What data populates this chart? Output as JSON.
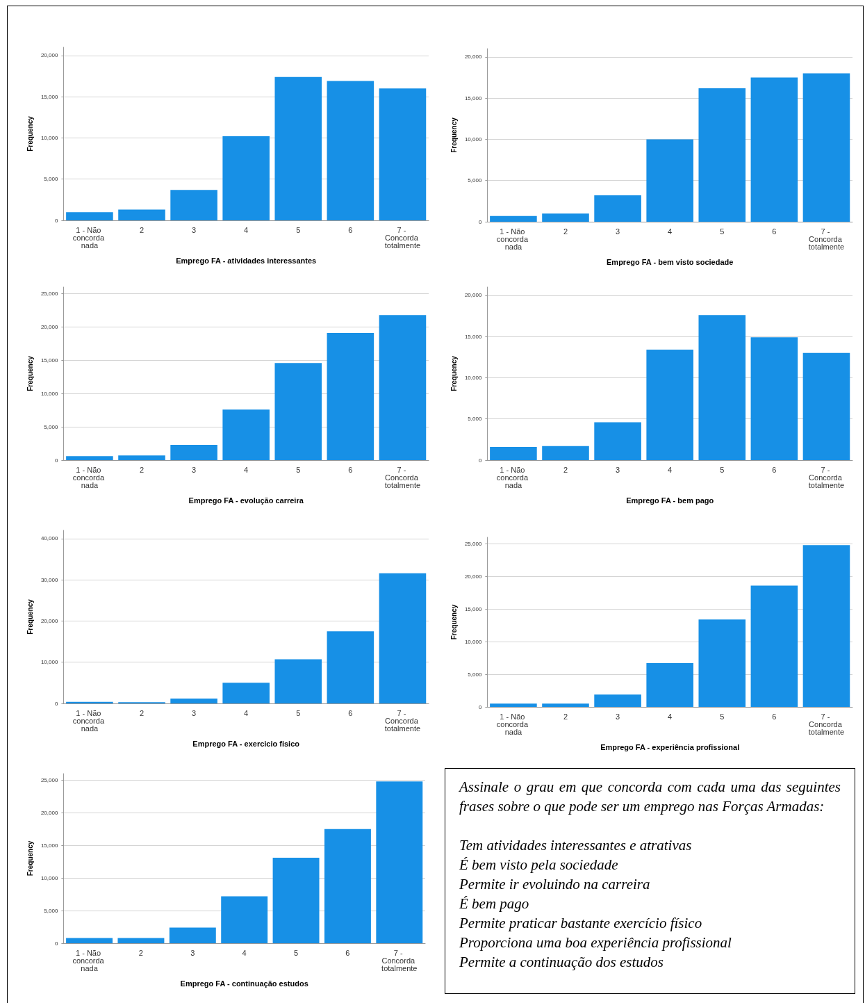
{
  "chart_data": [
    {
      "type": "bar",
      "xlabel": "Emprego FA - atividades interessantes",
      "ylabel": "Frequency",
      "categories": [
        "1 - Não concorda nada",
        "2",
        "3",
        "4",
        "5",
        "6",
        "7 - Concorda totalmente"
      ],
      "color": "#1790e6",
      "values": [
        1000,
        1300,
        3700,
        10200,
        17400,
        16900,
        16000
      ],
      "ylim": [
        0,
        21000
      ],
      "yticks": [
        {
          "value": 0,
          "label": "0"
        },
        {
          "value": 5000,
          "label": "5,000"
        },
        {
          "value": 10000,
          "label": "10,000"
        },
        {
          "value": 15000,
          "label": "15,000"
        },
        {
          "value": 20000,
          "label": "20,000"
        }
      ],
      "grid": "y"
    },
    {
      "type": "bar",
      "xlabel": "Emprego FA - bem visto sociedade",
      "ylabel": "Frequency",
      "categories": [
        "1 - Não concorda nada",
        "2",
        "3",
        "4",
        "5",
        "6",
        "7 - Concorda totalmente"
      ],
      "color": "#1790e6",
      "values": [
        700,
        1000,
        3200,
        10000,
        16200,
        17500,
        18000
      ],
      "ylim": [
        0,
        21000
      ],
      "yticks": [
        {
          "value": 0,
          "label": "0"
        },
        {
          "value": 5000,
          "label": "5,000"
        },
        {
          "value": 10000,
          "label": "10,000"
        },
        {
          "value": 15000,
          "label": "15,000"
        },
        {
          "value": 20000,
          "label": "20,000"
        }
      ],
      "grid": "y"
    },
    {
      "type": "bar",
      "xlabel": "Emprego FA - evolução carreira",
      "ylabel": "Frequency",
      "categories": [
        "1 - Não concorda nada",
        "2",
        "3",
        "4",
        "5",
        "6",
        "7 - Concorda totalmente"
      ],
      "color": "#1790e6",
      "values": [
        600,
        700,
        2300,
        7600,
        14600,
        19100,
        21800
      ],
      "ylim": [
        0,
        26000
      ],
      "yticks": [
        {
          "value": 0,
          "label": "0"
        },
        {
          "value": 5000,
          "label": "5,000"
        },
        {
          "value": 10000,
          "label": "10,000"
        },
        {
          "value": 15000,
          "label": "15,000"
        },
        {
          "value": 20000,
          "label": "20,000"
        },
        {
          "value": 25000,
          "label": "25,000"
        }
      ],
      "grid": "y"
    },
    {
      "type": "bar",
      "xlabel": "Emprego FA - bem pago",
      "ylabel": "Frequency",
      "categories": [
        "1 - Não concorda nada",
        "2",
        "3",
        "4",
        "5",
        "6",
        "7 - Concorda totalmente"
      ],
      "color": "#1790e6",
      "values": [
        1600,
        1700,
        4600,
        13400,
        17600,
        14900,
        13000
      ],
      "ylim": [
        0,
        21000
      ],
      "yticks": [
        {
          "value": 0,
          "label": "0"
        },
        {
          "value": 5000,
          "label": "5,000"
        },
        {
          "value": 10000,
          "label": "10,000"
        },
        {
          "value": 15000,
          "label": "15,000"
        },
        {
          "value": 20000,
          "label": "20,000"
        }
      ],
      "grid": "y"
    },
    {
      "type": "bar",
      "xlabel": "Emprego FA - exercicio fisico",
      "ylabel": "Frequency",
      "categories": [
        "1 - Não concorda nada",
        "2",
        "3",
        "4",
        "5",
        "6",
        "7 - Concorda totalmente"
      ],
      "color": "#1790e6",
      "values": [
        400,
        300,
        1200,
        5000,
        10700,
        17500,
        31600
      ],
      "ylim": [
        0,
        42000
      ],
      "yticks": [
        {
          "value": 0,
          "label": "0"
        },
        {
          "value": 10000,
          "label": "10,000"
        },
        {
          "value": 20000,
          "label": "20,000"
        },
        {
          "value": 30000,
          "label": "30,000"
        },
        {
          "value": 40000,
          "label": "40,000"
        }
      ],
      "grid": "y"
    },
    {
      "type": "bar",
      "xlabel": "Emprego FA - experiência profissional",
      "ylabel": "Frequency",
      "categories": [
        "1 - Não concorda nada",
        "2",
        "3",
        "4",
        "5",
        "6",
        "7 - Concorda totalmente"
      ],
      "color": "#1790e6",
      "values": [
        500,
        500,
        1900,
        6700,
        13400,
        18600,
        24800
      ],
      "ylim": [
        0,
        26000
      ],
      "yticks": [
        {
          "value": 0,
          "label": "0"
        },
        {
          "value": 5000,
          "label": "5,000"
        },
        {
          "value": 10000,
          "label": "10,000"
        },
        {
          "value": 15000,
          "label": "15,000"
        },
        {
          "value": 20000,
          "label": "20,000"
        },
        {
          "value": 25000,
          "label": "25,000"
        }
      ],
      "grid": "y"
    },
    {
      "type": "bar",
      "xlabel": "Emprego FA - continuação estudos",
      "ylabel": "Frequency",
      "categories": [
        "1 - Não concorda nada",
        "2",
        "3",
        "4",
        "5",
        "6",
        "7 - Concorda totalmente"
      ],
      "color": "#1790e6",
      "values": [
        800,
        800,
        2400,
        7200,
        13100,
        17500,
        24800
      ],
      "ylim": [
        0,
        26000
      ],
      "yticks": [
        {
          "value": 0,
          "label": "0"
        },
        {
          "value": 5000,
          "label": "5,000"
        },
        {
          "value": 10000,
          "label": "10,000"
        },
        {
          "value": 15000,
          "label": "15,000"
        },
        {
          "value": 20000,
          "label": "20,000"
        },
        {
          "value": 25000,
          "label": "25,000"
        }
      ],
      "grid": "y"
    },
    {
      "type": "other",
      "annotations": [
        "Assinale o grau em que concorda com cada uma das seguintes frases sobre o que pode ser um emprego nas Forças Armadas:",
        "Tem atividades interessantes e atrativas",
        "É bem visto pela sociedade",
        "Permite ir evoluindo na carreira",
        "É bem pago",
        "Permite praticar bastante exercício físico",
        "Proporciona uma boa experiência profissional",
        "Permite a continuação dos estudos"
      ]
    }
  ]
}
